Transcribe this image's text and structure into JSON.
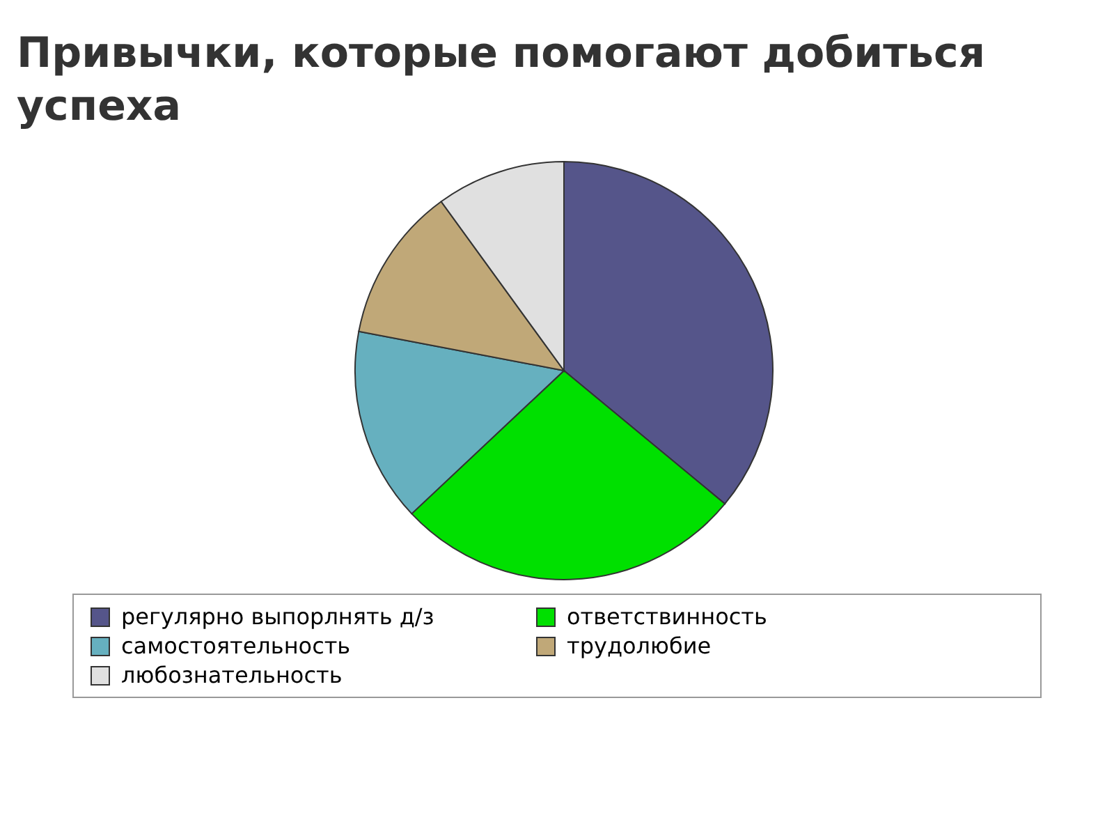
{
  "chart_data": {
    "type": "pie",
    "title": "Привычки, которые помогают добиться успеха",
    "categories": [
      "регулярно выпорлнять д/з",
      "ответствинность",
      "самостоятельность",
      "трудолюбие",
      "любознательность"
    ],
    "values": [
      36,
      27,
      15,
      12,
      10
    ],
    "colors": [
      "#55558a",
      "#00e000",
      "#66b0bf",
      "#c0a878",
      "#e0e0e0"
    ],
    "legend": "bottom"
  }
}
